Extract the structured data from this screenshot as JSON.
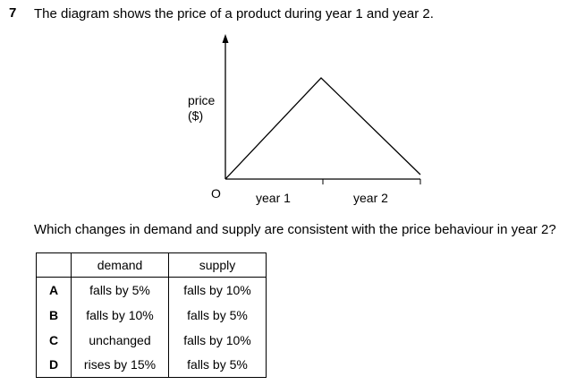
{
  "question": {
    "number": "7",
    "text": "The diagram shows the price of a product during year 1 and year 2."
  },
  "diagram": {
    "y_axis_label_line1": "price",
    "y_axis_label_line2": "($)",
    "origin_label": "O",
    "x_labels": [
      "year 1",
      "year 2"
    ]
  },
  "prompt": "Which changes in demand and supply are consistent with the price behaviour in year 2?",
  "table": {
    "headers": [
      "",
      "demand",
      "supply"
    ],
    "rows": [
      {
        "key": "A",
        "demand": "falls by 5%",
        "supply": "falls by 10%"
      },
      {
        "key": "B",
        "demand": "falls by 10%",
        "supply": "falls by 5%"
      },
      {
        "key": "C",
        "demand": "unchanged",
        "supply": "falls by 10%"
      },
      {
        "key": "D",
        "demand": "rises by 15%",
        "supply": "falls by 5%"
      }
    ]
  }
}
